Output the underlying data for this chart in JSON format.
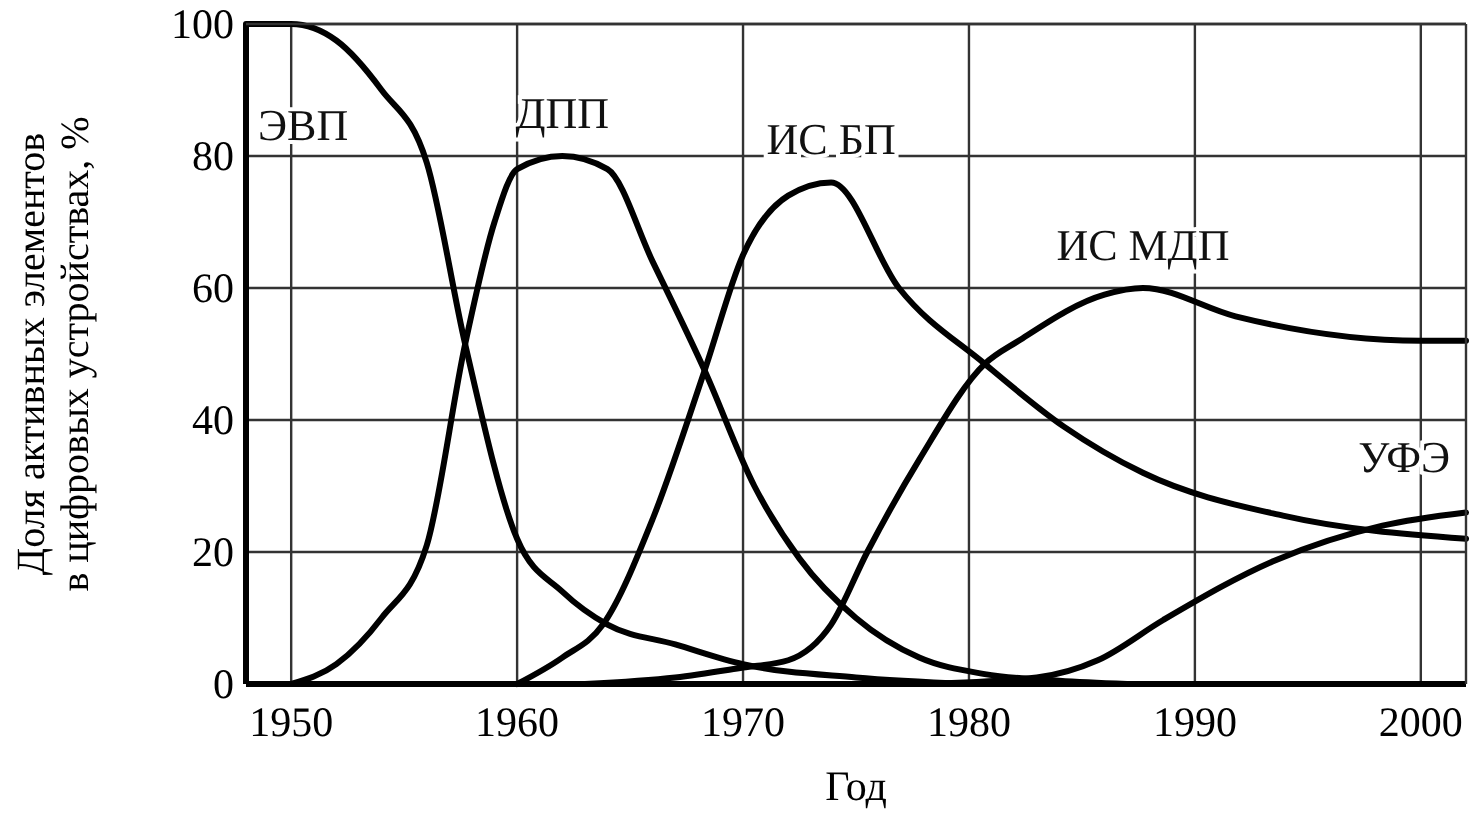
{
  "chart_data": {
    "type": "line",
    "xlabel": "Год",
    "ylabel": "Доля активных элементов\nв цифровых устройствах, %",
    "xlim": [
      1948,
      2002
    ],
    "ylim": [
      0,
      100
    ],
    "xticks": [
      1950,
      1960,
      1970,
      1980,
      1990,
      2000
    ],
    "yticks": [
      0,
      20,
      40,
      60,
      80,
      100
    ],
    "grid": true,
    "marker": "none",
    "line_style": "solid",
    "series": [
      {
        "name": "ЭВП",
        "color": "#000000",
        "x": [
          1948,
          1950,
          1952,
          1954,
          1956,
          1957.7,
          1960,
          1962,
          1964,
          1967,
          1970,
          1975,
          1980
        ],
        "values": [
          100,
          100,
          97.5,
          90,
          79,
          51.5,
          22,
          14,
          9,
          6,
          3,
          1,
          0
        ]
      },
      {
        "name": "ДПП",
        "color": "#000000",
        "x": [
          1950,
          1952,
          1954,
          1956,
          1957.7,
          1959,
          1960,
          1962,
          1964,
          1966,
          1968.3,
          1970.5,
          1972.5,
          1975,
          1977.8,
          1980.7,
          1984,
          1987
        ],
        "values": [
          0,
          3,
          10,
          21,
          51.5,
          70,
          78,
          80,
          78,
          64,
          47.5,
          30,
          19,
          10,
          4,
          1.5,
          0.5,
          0
        ]
      },
      {
        "name": "ИС БП",
        "color": "#000000",
        "x": [
          1960,
          1962,
          1963.8,
          1966,
          1968.3,
          1970,
          1972,
          1973.9,
          1976.9,
          1980.7,
          1984.2,
          1987.7,
          1993.9,
          2002
        ],
        "values": [
          0,
          4,
          9,
          25,
          47.5,
          65,
          74,
          76,
          60,
          48.5,
          39,
          32,
          25.5,
          22
        ]
      },
      {
        "name": "ИС МДП",
        "color": "#000000",
        "x": [
          1963,
          1967,
          1970,
          1972,
          1973.9,
          1975.5,
          1977.8,
          1980.7,
          1982.2,
          1986,
          1987.7,
          1991.8,
          2000,
          2002
        ],
        "values": [
          0,
          1,
          2.5,
          3.6,
          9,
          20,
          34,
          48.5,
          52,
          59,
          60,
          55.7,
          52,
          52
        ]
      },
      {
        "name": "УФЭ",
        "color": "#000000",
        "x": [
          1978,
          1983,
          1985.7,
          1988.6,
          1993.6,
          1998.3,
          2002
        ],
        "values": [
          0,
          1,
          3.6,
          9.7,
          18.8,
          24,
          26
        ]
      }
    ]
  }
}
